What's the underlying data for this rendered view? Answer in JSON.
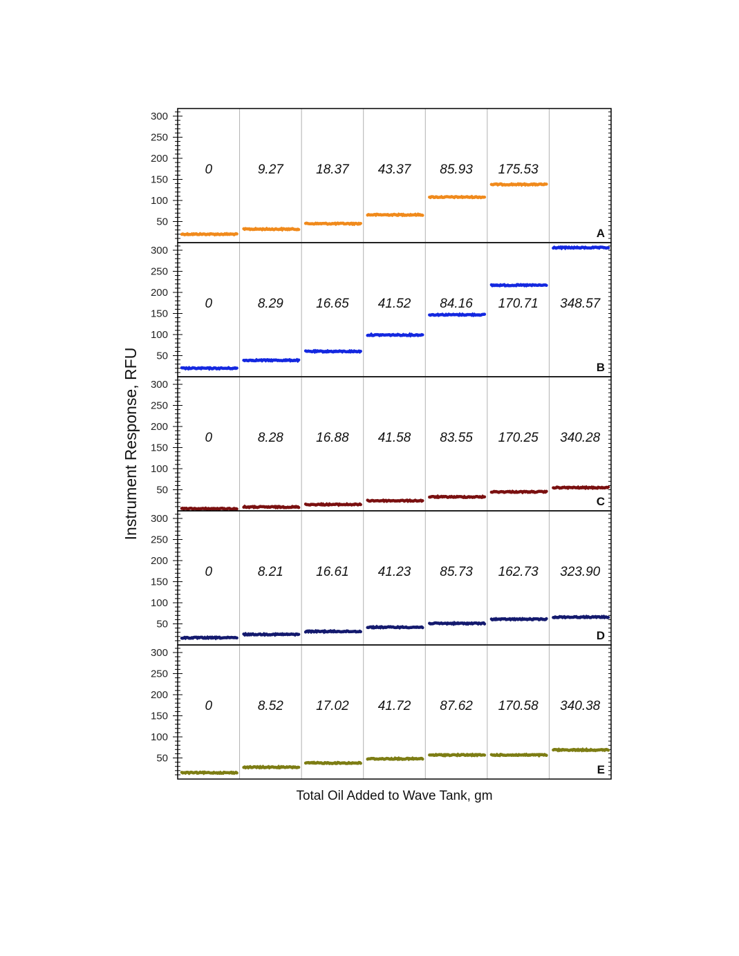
{
  "chart_data": {
    "type": "line",
    "xlabel": "Total Oil Added to Wave Tank, gm",
    "ylabel": "Instrument Response,  RFU",
    "yticks": [
      50,
      100,
      150,
      200,
      250,
      300
    ],
    "ylim": [
      0,
      318
    ],
    "grid": "vertical separators between oil additions",
    "panels": [
      {
        "name": "A",
        "color": "#f08a1c",
        "oil_added_gm": [
          "0",
          "9.27",
          "18.37",
          "43.37",
          "85.93",
          "175.53",
          ""
        ],
        "response_rfu": [
          20,
          32,
          45,
          66,
          108,
          138,
          null
        ]
      },
      {
        "name": "B",
        "color": "#1428e0",
        "oil_added_gm": [
          "0",
          "8.29",
          "16.65",
          "41.52",
          "84.16",
          "170.71",
          "348.57"
        ],
        "response_rfu": [
          20,
          39,
          60,
          99,
          147,
          217,
          306
        ]
      },
      {
        "name": "C",
        "color": "#7a1010",
        "oil_added_gm": [
          "0",
          "8.28",
          "16.88",
          "41.58",
          "83.55",
          "170.25",
          "340.28"
        ],
        "response_rfu": [
          5,
          9,
          15,
          24,
          33,
          45,
          55
        ]
      },
      {
        "name": "D",
        "color": "#141a6e",
        "oil_added_gm": [
          "0",
          "8.21",
          "16.61",
          "41.23",
          "85.73",
          "162.73",
          "323.90"
        ],
        "response_rfu": [
          17,
          25,
          32,
          42,
          51,
          61,
          66
        ]
      },
      {
        "name": "E",
        "color": "#7d7d14",
        "oil_added_gm": [
          "0",
          "8.52",
          "17.02",
          "41.72",
          "87.62",
          "170.58",
          "340.38"
        ],
        "response_rfu": [
          15,
          28,
          38,
          48,
          57,
          57,
          69
        ]
      }
    ]
  }
}
